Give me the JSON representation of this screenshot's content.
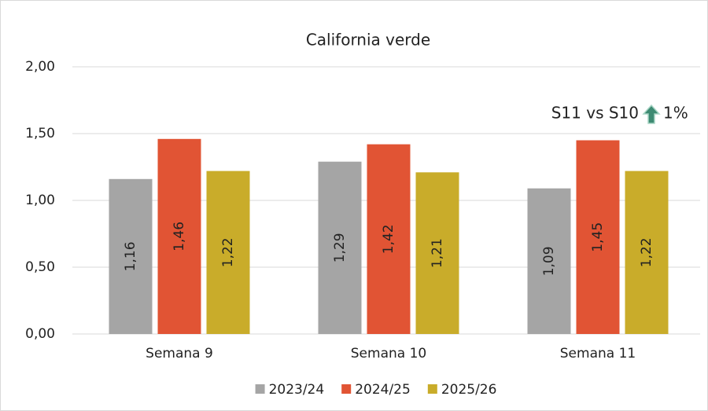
{
  "chart_data": {
    "type": "bar",
    "title": "California verde",
    "categories": [
      "Semana 9",
      "Semana 10",
      "Semana 11"
    ],
    "series": [
      {
        "name": "2023/24",
        "color": "#a5a5a5",
        "values": [
          1.16,
          1.29,
          1.09
        ],
        "value_labels": [
          "1,16",
          "1,29",
          "1,09"
        ]
      },
      {
        "name": "2024/25",
        "color": "#e15434",
        "values": [
          1.46,
          1.42,
          1.45
        ],
        "value_labels": [
          "1,46",
          "1,42",
          "1,45"
        ]
      },
      {
        "name": "2025/26",
        "color": "#c9ac2a",
        "values": [
          1.22,
          1.21,
          1.22
        ],
        "value_labels": [
          "1,22",
          "1,21",
          "1,22"
        ]
      }
    ],
    "ylim": [
      0,
      2
    ],
    "yticks": [
      {
        "value": 0,
        "label": "0,00"
      },
      {
        "value": 0.5,
        "label": "0,50"
      },
      {
        "value": 1,
        "label": "1,00"
      },
      {
        "value": 1.5,
        "label": "1,50"
      },
      {
        "value": 2,
        "label": "2,00"
      }
    ],
    "grid": true,
    "legend": "bottom",
    "annotation": {
      "text": "S11 vs S10",
      "change": "1%"
    }
  }
}
